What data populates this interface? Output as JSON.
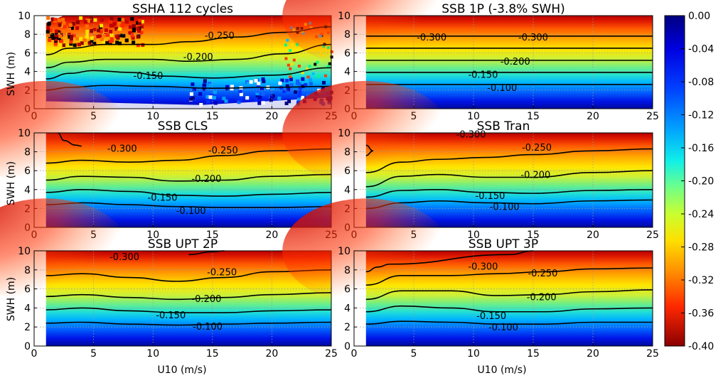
{
  "chart_data": {
    "type": "heatmap",
    "x_axis": {
      "label": "U10 (m/s)",
      "range": [
        0,
        25
      ],
      "ticks": [
        "0",
        "5",
        "10",
        "15",
        "20",
        "25"
      ]
    },
    "y_axis": {
      "label": "SWH (m)",
      "range": [
        0,
        10
      ],
      "ticks": [
        "0",
        "2",
        "4",
        "6",
        "8",
        "10"
      ]
    },
    "colorbar": {
      "range": [
        -0.4,
        0.0
      ],
      "colormap": "jet",
      "ticks": [
        "0.00",
        "-0.04",
        "-0.08",
        "-0.12",
        "-0.16",
        "-0.20",
        "-0.24",
        "-0.28",
        "-0.32",
        "-0.36",
        "-0.40"
      ]
    },
    "panels": [
      {
        "title": "SSHA 112 cycles",
        "contours": [
          {
            "level": -0.1,
            "label": "",
            "points": [
              [
                1,
                2.0
              ],
              [
                3,
                2.3
              ],
              [
                6,
                2.5
              ],
              [
                10,
                2.4
              ],
              [
                15,
                2.2
              ],
              [
                20,
                2.3
              ],
              [
                25,
                2.4
              ]
            ]
          },
          {
            "level": -0.15,
            "label": "-0.150",
            "points": [
              [
                1,
                3.2
              ],
              [
                3,
                3.8
              ],
              [
                5,
                4.1
              ],
              [
                8,
                3.9
              ],
              [
                11,
                3.5
              ],
              [
                15,
                3.3
              ],
              [
                20,
                3.6
              ],
              [
                25,
                4.4
              ]
            ]
          },
          {
            "level": -0.2,
            "label": "-0.200",
            "points": [
              [
                1,
                4.4
              ],
              [
                3,
                5.0
              ],
              [
                6,
                5.3
              ],
              [
                10,
                5.3
              ],
              [
                13,
                5.1
              ],
              [
                17,
                5.3
              ],
              [
                21,
                5.9
              ],
              [
                25,
                6.9
              ]
            ]
          },
          {
            "level": -0.25,
            "label": "-0.250",
            "points": [
              [
                1,
                5.8
              ],
              [
                3,
                6.5
              ],
              [
                6,
                6.9
              ],
              [
                10,
                6.9
              ],
              [
                13,
                7.2
              ],
              [
                17,
                7.7
              ],
              [
                21,
                8.2
              ],
              [
                25,
                8.8
              ]
            ]
          }
        ],
        "labels": [
          {
            "text": "-0.250",
            "x": 15.6,
            "y": 7.9
          },
          {
            "text": "-0.200",
            "x": 13.8,
            "y": 5.6
          },
          {
            "text": "-0.150",
            "x": 9.6,
            "y": 3.6
          }
        ]
      },
      {
        "title": "SSB 1P (-3.8% SWH)",
        "contours": [
          {
            "level": -0.1,
            "label": "-0.100",
            "points": [
              [
                1,
                2.6
              ],
              [
                25,
                2.6
              ]
            ]
          },
          {
            "level": -0.15,
            "label": "-0.150",
            "points": [
              [
                1,
                3.9
              ],
              [
                25,
                3.9
              ]
            ]
          },
          {
            "level": -0.2,
            "label": "-0.200",
            "points": [
              [
                1,
                5.2
              ],
              [
                25,
                5.2
              ]
            ]
          },
          {
            "level": -0.25,
            "label": "",
            "points": [
              [
                1,
                6.5
              ],
              [
                25,
                6.5
              ]
            ]
          },
          {
            "level": -0.3,
            "label": "-0.300",
            "points": [
              [
                1,
                7.8
              ],
              [
                25,
                7.8
              ]
            ]
          }
        ],
        "labels": [
          {
            "text": "-0.300",
            "x": 6.5,
            "y": 7.7
          },
          {
            "text": "-0.300",
            "x": 15.0,
            "y": 7.7
          },
          {
            "text": "-0.200",
            "x": 13.5,
            "y": 5.1
          },
          {
            "text": "-0.150",
            "x": 10.8,
            "y": 3.7
          },
          {
            "text": "-0.100",
            "x": 12.4,
            "y": 2.3
          }
        ]
      },
      {
        "title": "SSB CLS",
        "contours": [
          {
            "level": -0.1,
            "label": "-0.100",
            "points": [
              [
                1,
                2.4
              ],
              [
                4,
                2.6
              ],
              [
                8,
                2.4
              ],
              [
                12,
                2.2
              ],
              [
                16,
                2.1
              ],
              [
                20,
                2.1
              ],
              [
                25,
                2.2
              ]
            ]
          },
          {
            "level": -0.15,
            "label": "-0.150",
            "points": [
              [
                1,
                3.7
              ],
              [
                4,
                4.0
              ],
              [
                8,
                3.8
              ],
              [
                12,
                3.4
              ],
              [
                16,
                3.3
              ],
              [
                20,
                3.5
              ],
              [
                25,
                3.7
              ]
            ]
          },
          {
            "level": -0.2,
            "label": "-0.200",
            "points": [
              [
                1,
                5.0
              ],
              [
                4,
                5.4
              ],
              [
                8,
                5.3
              ],
              [
                12,
                4.9
              ],
              [
                16,
                5.0
              ],
              [
                20,
                5.4
              ],
              [
                25,
                5.6
              ]
            ]
          },
          {
            "level": -0.25,
            "label": "-0.250",
            "points": [
              [
                1,
                6.8
              ],
              [
                4,
                7.1
              ],
              [
                8,
                6.9
              ],
              [
                12,
                7.1
              ],
              [
                16,
                7.6
              ],
              [
                20,
                8.1
              ],
              [
                25,
                8.3
              ]
            ]
          },
          {
            "level": -0.3,
            "label": "-0.300",
            "points": [
              [
                2,
                10
              ],
              [
                2.5,
                9.2
              ],
              [
                3.5,
                8.7
              ],
              [
                4,
                8.6
              ]
            ]
          }
        ],
        "labels": [
          {
            "text": "-0.300",
            "x": 7.4,
            "y": 8.4
          },
          {
            "text": "-0.250",
            "x": 15.9,
            "y": 8.2
          },
          {
            "text": "-0.200",
            "x": 14.5,
            "y": 5.2
          },
          {
            "text": "-0.150",
            "x": 10.8,
            "y": 3.2
          },
          {
            "text": "-0.100",
            "x": 13.2,
            "y": 1.8
          }
        ]
      },
      {
        "title": "SSB Tran",
        "contours": [
          {
            "level": -0.1,
            "label": "-0.100",
            "points": [
              [
                1,
                2.0
              ],
              [
                4,
                2.6
              ],
              [
                7,
                2.8
              ],
              [
                11,
                2.6
              ],
              [
                15,
                2.5
              ],
              [
                20,
                2.8
              ],
              [
                25,
                2.9
              ]
            ]
          },
          {
            "level": -0.15,
            "label": "-0.150",
            "points": [
              [
                1,
                3.2
              ],
              [
                4,
                3.9
              ],
              [
                7,
                4.0
              ],
              [
                11,
                3.7
              ],
              [
                15,
                3.6
              ],
              [
                20,
                3.9
              ],
              [
                25,
                4.0
              ]
            ]
          },
          {
            "level": -0.2,
            "label": "-0.200",
            "points": [
              [
                1,
                4.3
              ],
              [
                4,
                5.4
              ],
              [
                7,
                5.6
              ],
              [
                11,
                5.3
              ],
              [
                15,
                5.3
              ],
              [
                20,
                5.8
              ],
              [
                25,
                6.0
              ]
            ]
          },
          {
            "level": -0.25,
            "label": "-0.250",
            "points": [
              [
                1,
                5.8
              ],
              [
                4,
                6.9
              ],
              [
                7,
                7.2
              ],
              [
                11,
                7.4
              ],
              [
                15,
                7.7
              ],
              [
                20,
                8.1
              ],
              [
                25,
                8.3
              ]
            ]
          },
          {
            "level": -0.3,
            "label": "-0.300",
            "points": [
              [
                1,
                8.7
              ],
              [
                1.6,
                8.1
              ],
              [
                1,
                7.6
              ]
            ]
          }
        ],
        "labels": [
          {
            "text": "-0.300",
            "x": 9.8,
            "y": 9.9
          },
          {
            "text": "-0.250",
            "x": 15.3,
            "y": 8.5
          },
          {
            "text": "-0.200",
            "x": 15.2,
            "y": 5.6
          },
          {
            "text": "-0.150",
            "x": 11.4,
            "y": 3.4
          },
          {
            "text": "-0.100",
            "x": 12.6,
            "y": 2.2
          }
        ]
      },
      {
        "title": "SSB UPT 2P",
        "contours": [
          {
            "level": -0.1,
            "label": "-0.100",
            "points": [
              [
                1,
                2.4
              ],
              [
                4,
                2.5
              ],
              [
                8,
                2.3
              ],
              [
                12,
                2.2
              ],
              [
                16,
                2.3
              ],
              [
                20,
                2.4
              ],
              [
                25,
                2.5
              ]
            ]
          },
          {
            "level": -0.15,
            "label": "-0.150",
            "points": [
              [
                1,
                3.8
              ],
              [
                4,
                4.0
              ],
              [
                8,
                3.7
              ],
              [
                12,
                3.5
              ],
              [
                16,
                3.5
              ],
              [
                20,
                3.7
              ],
              [
                25,
                3.8
              ]
            ]
          },
          {
            "level": -0.2,
            "label": "-0.200",
            "points": [
              [
                1,
                5.2
              ],
              [
                4,
                5.4
              ],
              [
                8,
                5.1
              ],
              [
                12,
                4.9
              ],
              [
                16,
                5.1
              ],
              [
                20,
                5.4
              ],
              [
                25,
                5.6
              ]
            ]
          },
          {
            "level": -0.25,
            "label": "-0.250",
            "points": [
              [
                1,
                7.4
              ],
              [
                4,
                7.6
              ],
              [
                8,
                7.2
              ],
              [
                12,
                6.8
              ],
              [
                16,
                7.2
              ],
              [
                20,
                7.8
              ],
              [
                25,
                8.0
              ]
            ]
          },
          {
            "level": -0.3,
            "label": "-0.300",
            "points": [
              [
                13,
                9.6
              ],
              [
                15,
                9.9
              ],
              [
                16,
                10
              ]
            ]
          }
        ],
        "labels": [
          {
            "text": "-0.300",
            "x": 7.6,
            "y": 9.4
          },
          {
            "text": "-0.250",
            "x": 15.8,
            "y": 7.8
          },
          {
            "text": "-0.200",
            "x": 14.5,
            "y": 5.0
          },
          {
            "text": "-0.150",
            "x": 11.5,
            "y": 3.3
          },
          {
            "text": "-0.100",
            "x": 14.6,
            "y": 2.1
          }
        ]
      },
      {
        "title": "SSB UPT 3P",
        "contours": [
          {
            "level": -0.1,
            "label": "-0.100",
            "points": [
              [
                1,
                2.3
              ],
              [
                4,
                2.6
              ],
              [
                8,
                2.5
              ],
              [
                12,
                2.3
              ],
              [
                16,
                2.3
              ],
              [
                20,
                2.5
              ],
              [
                25,
                2.5
              ]
            ]
          },
          {
            "level": -0.15,
            "label": "-0.150",
            "points": [
              [
                1,
                3.6
              ],
              [
                4,
                4.2
              ],
              [
                8,
                4.0
              ],
              [
                12,
                3.6
              ],
              [
                16,
                3.6
              ],
              [
                20,
                3.9
              ],
              [
                25,
                4.0
              ]
            ]
          },
          {
            "level": -0.2,
            "label": "-0.200",
            "points": [
              [
                1,
                4.9
              ],
              [
                4,
                5.8
              ],
              [
                8,
                5.8
              ],
              [
                12,
                5.3
              ],
              [
                16,
                5.4
              ],
              [
                20,
                5.7
              ],
              [
                25,
                5.9
              ]
            ]
          },
          {
            "level": -0.25,
            "label": "-0.250",
            "points": [
              [
                1,
                6.4
              ],
              [
                4,
                7.4
              ],
              [
                8,
                7.4
              ],
              [
                12,
                7.6
              ],
              [
                16,
                7.8
              ],
              [
                20,
                8.1
              ],
              [
                25,
                8.2
              ]
            ]
          },
          {
            "level": -0.3,
            "label": "-0.300",
            "points": [
              [
                1,
                7.8
              ],
              [
                2,
                8.3
              ],
              [
                3,
                8.6
              ],
              [
                13,
                9.6
              ],
              [
                15,
                10
              ]
            ]
          }
        ],
        "labels": [
          {
            "text": "-0.300",
            "x": 10.8,
            "y": 8.4
          },
          {
            "text": "-0.250",
            "x": 15.8,
            "y": 7.7
          },
          {
            "text": "-0.200",
            "x": 15.7,
            "y": 5.2
          },
          {
            "text": "-0.150",
            "x": 11.5,
            "y": 3.2
          },
          {
            "text": "-0.100",
            "x": 12.5,
            "y": 2.0
          }
        ]
      }
    ]
  }
}
